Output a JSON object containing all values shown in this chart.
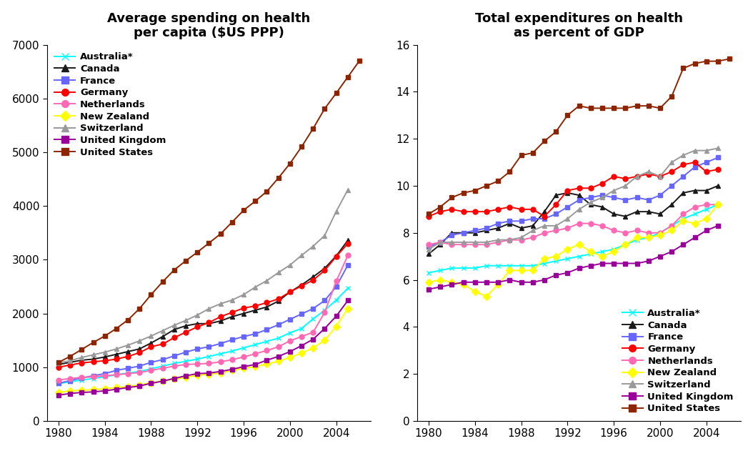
{
  "years": [
    1980,
    1981,
    1982,
    1983,
    1984,
    1985,
    1986,
    1987,
    1988,
    1989,
    1990,
    1991,
    1992,
    1993,
    1994,
    1995,
    1996,
    1997,
    1998,
    1999,
    2000,
    2001,
    2002,
    2003,
    2004,
    2005,
    2006
  ],
  "spending": {
    "Australia": [
      693,
      730,
      760,
      790,
      820,
      860,
      890,
      920,
      970,
      1020,
      1070,
      1110,
      1150,
      1200,
      1250,
      1300,
      1360,
      1420,
      1480,
      1540,
      1640,
      1720,
      1900,
      2060,
      2250,
      2470,
      null
    ],
    "Canada": [
      1050,
      1090,
      1130,
      1150,
      1190,
      1240,
      1290,
      1340,
      1450,
      1570,
      1700,
      1770,
      1810,
      1810,
      1860,
      1940,
      2000,
      2060,
      2120,
      2230,
      2400,
      2530,
      2680,
      2840,
      3070,
      3360,
      null
    ],
    "France": [
      700,
      750,
      800,
      840,
      880,
      940,
      980,
      1020,
      1090,
      1140,
      1210,
      1280,
      1340,
      1380,
      1440,
      1510,
      1570,
      1620,
      1700,
      1790,
      1890,
      1990,
      2090,
      2240,
      2500,
      2900,
      null
    ],
    "Germany": [
      1000,
      1040,
      1080,
      1100,
      1120,
      1150,
      1200,
      1270,
      1380,
      1430,
      1550,
      1650,
      1750,
      1830,
      1940,
      2020,
      2100,
      2140,
      2200,
      2270,
      2400,
      2510,
      2620,
      2800,
      3060,
      3300,
      null
    ],
    "Netherlands": [
      760,
      790,
      810,
      820,
      840,
      860,
      880,
      900,
      940,
      980,
      1020,
      1050,
      1060,
      1070,
      1100,
      1140,
      1190,
      1250,
      1310,
      1380,
      1490,
      1570,
      1650,
      2020,
      2600,
      3080,
      null
    ],
    "New Zealand": [
      530,
      560,
      570,
      580,
      600,
      620,
      640,
      670,
      710,
      740,
      780,
      810,
      850,
      870,
      890,
      940,
      980,
      1010,
      1060,
      1110,
      1180,
      1260,
      1360,
      1500,
      1760,
      2090,
      null
    ],
    "Switzerland": [
      1080,
      1120,
      1180,
      1230,
      1280,
      1340,
      1410,
      1490,
      1580,
      1680,
      1780,
      1870,
      1970,
      2090,
      2180,
      2250,
      2350,
      2490,
      2610,
      2760,
      2900,
      3080,
      3250,
      3450,
      3900,
      4300,
      null
    ],
    "United Kingdom": [
      480,
      510,
      530,
      540,
      560,
      590,
      620,
      650,
      700,
      740,
      790,
      840,
      880,
      890,
      920,
      960,
      1010,
      1050,
      1130,
      1200,
      1290,
      1400,
      1520,
      1720,
      1950,
      2240,
      null
    ],
    "United States": [
      1090,
      1200,
      1330,
      1460,
      1580,
      1720,
      1880,
      2090,
      2350,
      2590,
      2810,
      2980,
      3140,
      3310,
      3480,
      3700,
      3920,
      4090,
      4270,
      4520,
      4790,
      5100,
      5440,
      5810,
      6100,
      6400,
      6700
    ]
  },
  "gdp": {
    "Australia": [
      6.3,
      6.4,
      6.5,
      6.5,
      6.5,
      6.6,
      6.6,
      6.6,
      6.6,
      6.6,
      6.7,
      6.8,
      6.9,
      7.0,
      7.1,
      7.2,
      7.3,
      7.5,
      7.7,
      7.8,
      8.0,
      8.3,
      8.6,
      8.8,
      9.0,
      9.2,
      null
    ],
    "Canada": [
      7.1,
      7.5,
      8.0,
      8.0,
      8.0,
      8.1,
      8.2,
      8.4,
      8.2,
      8.3,
      8.9,
      9.6,
      9.7,
      9.6,
      9.2,
      9.1,
      8.8,
      8.7,
      8.9,
      8.9,
      8.8,
      9.2,
      9.7,
      9.8,
      9.8,
      10.0,
      null
    ],
    "France": [
      7.4,
      7.6,
      7.9,
      8.0,
      8.1,
      8.2,
      8.4,
      8.5,
      8.5,
      8.6,
      8.6,
      8.8,
      9.1,
      9.4,
      9.5,
      9.6,
      9.5,
      9.4,
      9.5,
      9.4,
      9.6,
      10.0,
      10.4,
      10.8,
      11.0,
      11.2,
      null
    ],
    "Germany": [
      8.7,
      8.9,
      9.0,
      8.9,
      8.9,
      8.9,
      9.0,
      9.1,
      9.0,
      9.0,
      8.7,
      9.2,
      9.8,
      9.9,
      9.9,
      10.1,
      10.4,
      10.3,
      10.4,
      10.5,
      10.4,
      10.6,
      10.9,
      11.0,
      10.6,
      10.7,
      null
    ],
    "Netherlands": [
      7.5,
      7.6,
      7.5,
      7.5,
      7.5,
      7.5,
      7.6,
      7.7,
      7.7,
      7.8,
      8.0,
      8.1,
      8.2,
      8.4,
      8.4,
      8.3,
      8.1,
      8.0,
      8.1,
      8.0,
      8.0,
      8.3,
      8.8,
      9.1,
      9.2,
      9.2,
      null
    ],
    "New Zealand": [
      5.9,
      6.0,
      5.9,
      5.8,
      5.5,
      5.3,
      5.8,
      6.4,
      6.4,
      6.4,
      6.9,
      7.0,
      7.3,
      7.5,
      7.2,
      7.0,
      7.2,
      7.5,
      7.8,
      7.8,
      7.9,
      8.1,
      8.5,
      8.4,
      8.6,
      9.2,
      null
    ],
    "Switzerland": [
      7.3,
      7.6,
      7.6,
      7.6,
      7.6,
      7.6,
      7.7,
      7.7,
      7.8,
      8.1,
      8.3,
      8.3,
      8.6,
      9.0,
      9.3,
      9.5,
      9.8,
      10.0,
      10.4,
      10.6,
      10.4,
      11.0,
      11.3,
      11.5,
      11.5,
      11.6,
      null
    ],
    "United Kingdom": [
      5.6,
      5.7,
      5.8,
      5.9,
      5.9,
      5.9,
      5.9,
      6.0,
      5.9,
      5.9,
      6.0,
      6.2,
      6.3,
      6.5,
      6.6,
      6.7,
      6.7,
      6.7,
      6.7,
      6.8,
      7.0,
      7.2,
      7.5,
      7.8,
      8.1,
      8.3,
      null
    ],
    "United States": [
      8.8,
      9.1,
      9.5,
      9.7,
      9.8,
      10.0,
      10.2,
      10.6,
      11.3,
      11.4,
      11.9,
      12.3,
      13.0,
      13.4,
      13.3,
      13.3,
      13.3,
      13.3,
      13.4,
      13.4,
      13.3,
      13.8,
      15.0,
      15.2,
      15.3,
      15.3,
      15.4
    ]
  },
  "colors": {
    "Australia": "#00FFFF",
    "Canada": "#1a1a1a",
    "France": "#6666FF",
    "Germany": "#FF0000",
    "Netherlands": "#FF69B4",
    "New Zealand": "#FFFF00",
    "Switzerland": "#999999",
    "United Kingdom": "#990099",
    "United States": "#8B2500"
  },
  "markers": {
    "Australia": "x",
    "Canada": "^",
    "France": "s",
    "Germany": "o",
    "Netherlands": "o",
    "New Zealand": "D",
    "Switzerland": "^",
    "United Kingdom": "s",
    "United States": "s"
  },
  "markerfacecolors": {
    "Australia": "none",
    "Canada": "#1a1a1a",
    "France": "#6666FF",
    "Germany": "#FF0000",
    "Netherlands": "#FF69B4",
    "New Zealand": "#FFFF00",
    "Switzerland": "#999999",
    "United Kingdom": "#990099",
    "United States": "#8B2500"
  },
  "title1": "Average spending on health\nper capita ($US PPP)",
  "title2": "Total expenditures on health\nas percent of GDP",
  "ylim1": [
    0,
    7000
  ],
  "ylim2": [
    0,
    16
  ],
  "yticks1": [
    0,
    1000,
    2000,
    3000,
    4000,
    5000,
    6000,
    7000
  ],
  "yticks2": [
    0,
    2,
    4,
    6,
    8,
    10,
    12,
    14,
    16
  ],
  "xticks": [
    1980,
    1984,
    1988,
    1992,
    1996,
    2000,
    2004
  ],
  "legend_order": [
    "Australia",
    "Canada",
    "France",
    "Germany",
    "Netherlands",
    "New Zealand",
    "Switzerland",
    "United Kingdom",
    "United States"
  ],
  "legend_labels": [
    "Australia*",
    "Canada",
    "France",
    "Germany",
    "Netherlands",
    "New Zealand",
    "Switzerland",
    "United Kingdom",
    "United States"
  ]
}
